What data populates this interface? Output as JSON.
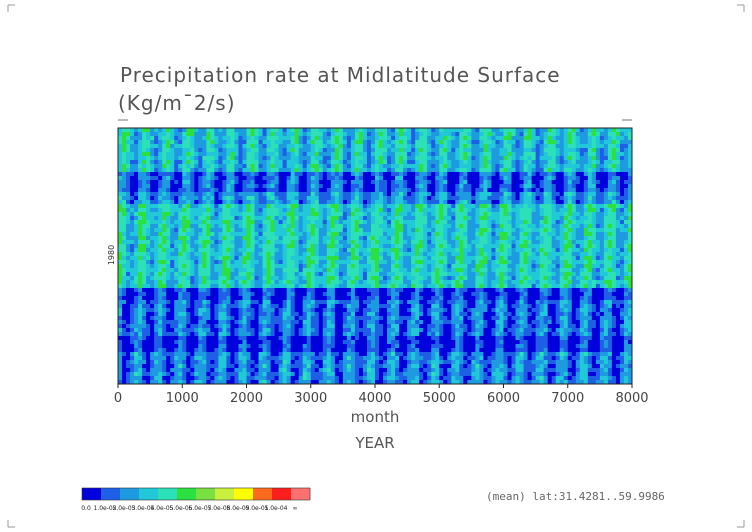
{
  "chart_data": {
    "type": "heatmap",
    "title_line1": "Precipitation rate at Midlatitude Surface",
    "title_line2": "(Kg/m¯2/s)",
    "xlabel": "month",
    "xlabel2": "YEAR",
    "ytick": "1980",
    "x_ticks": [
      "0",
      "1000",
      "2000",
      "3000",
      "4000",
      "5000",
      "6000",
      "7000",
      "8000"
    ],
    "xlim": [
      0,
      8000
    ],
    "footer": "(mean) lat:31.4281..59.9986",
    "colorbar": {
      "colors": [
        "#0000dd",
        "#1e5fe6",
        "#1e9be0",
        "#20c8d8",
        "#2ce0b8",
        "#2ce040",
        "#78e040",
        "#c8f03c",
        "#ffff00",
        "#ff6a1e",
        "#ff1e1e",
        "#ff7070"
      ],
      "labels": [
        "0.0",
        "1.0e-05",
        "2.0e-05",
        "3.0e-05",
        "4.0e-05",
        "5.0e-05",
        "6.0e-05",
        "7.0e-05",
        "8.0e-05",
        "9.0e-05",
        "1.0e-04",
        "∞"
      ]
    }
  }
}
